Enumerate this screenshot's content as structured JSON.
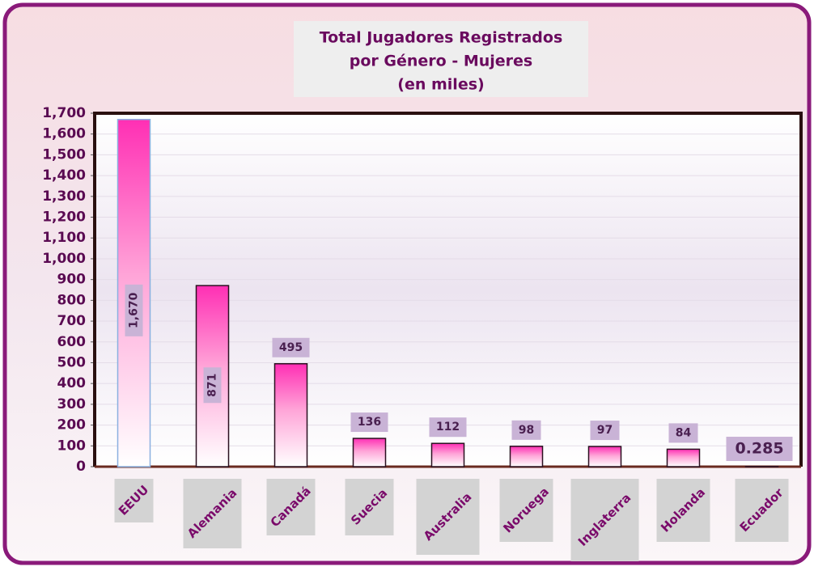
{
  "chart_data": {
    "type": "bar",
    "title": [
      "Total Jugadores Registrados",
      "por Género  - Mujeres",
      "(en miles)"
    ],
    "categories": [
      "EEUU",
      "Alemania",
      "Canadá",
      "Suecia",
      "Australia",
      "Noruega",
      "Inglaterra",
      "Holanda",
      "Ecuador"
    ],
    "values": [
      1670,
      871,
      495,
      136,
      112,
      98,
      97,
      84,
      0.285
    ],
    "value_labels": [
      "1,670",
      "871",
      "495",
      "136",
      "112",
      "98",
      "97",
      "84",
      "0.285"
    ],
    "color": "#ff2fb4",
    "ylim": [
      0,
      1700
    ],
    "yticks": [
      0,
      100,
      200,
      300,
      400,
      500,
      600,
      700,
      800,
      900,
      {
        "value": 1000,
        "label": "1,000"
      },
      {
        "value": 1100,
        "label": "1,100"
      },
      {
        "value": 1200,
        "label": "1,200"
      },
      {
        "value": 1300,
        "label": "1,300"
      },
      {
        "value": 1400,
        "label": "1,400"
      },
      {
        "value": 1500,
        "label": "1,500"
      },
      {
        "value": 1600,
        "label": "1,600"
      },
      {
        "value": 1700,
        "label": "1,700"
      }
    ],
    "grid": true
  }
}
